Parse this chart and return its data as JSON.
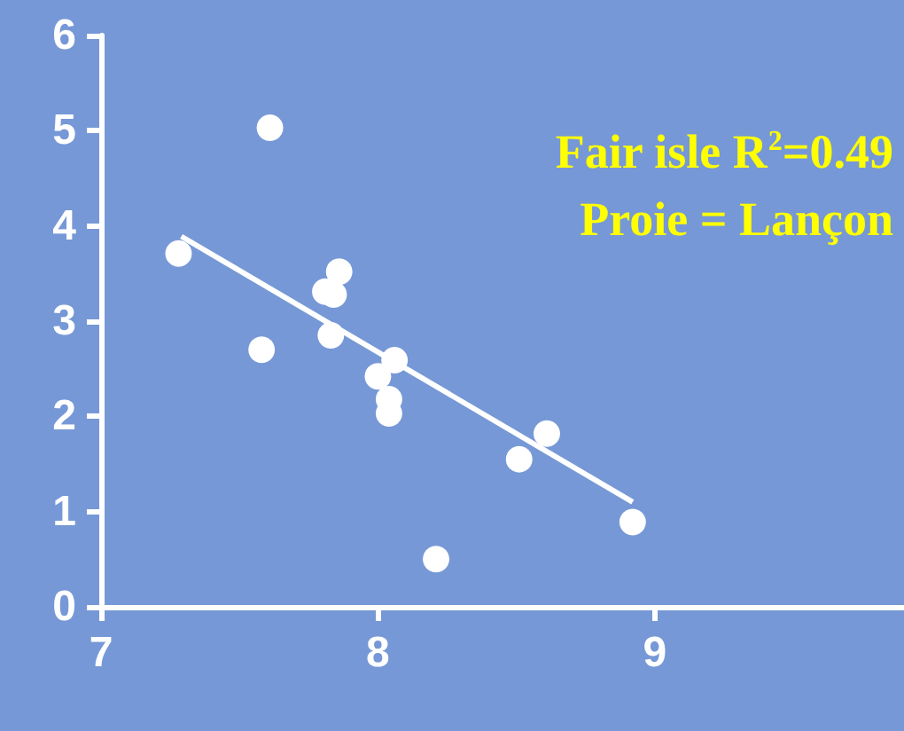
{
  "chart_data": {
    "type": "scatter",
    "marker": "circle",
    "grid": false,
    "xlim": [
      7,
      9.9
    ],
    "xticks": [
      7,
      8,
      9
    ],
    "ylim": [
      0,
      6
    ],
    "yticks": [
      0,
      1,
      2,
      3,
      4,
      5,
      6
    ],
    "annotations": [
      "Fair isle R$^{2}$=0.49",
      "Proie = Lançon"
    ],
    "series": [
      {
        "color": "#ffffff",
        "x": [
          7.28,
          7.61,
          7.58,
          7.86,
          7.81,
          7.84,
          7.83,
          8.06,
          8.0,
          8.04,
          8.04,
          8.21,
          8.51,
          8.61,
          8.92
        ],
        "values": [
          3.71,
          5.03,
          2.7,
          3.52,
          3.31,
          3.28,
          2.85,
          2.59,
          2.42,
          2.18,
          2.03,
          0.5,
          1.55,
          1.82,
          0.89
        ]
      },
      {
        "type": "line",
        "marker": "none",
        "color": "#ffffff",
        "x": [
          7.29,
          8.92
        ],
        "values": [
          3.89,
          1.1
        ]
      }
    ]
  }
}
